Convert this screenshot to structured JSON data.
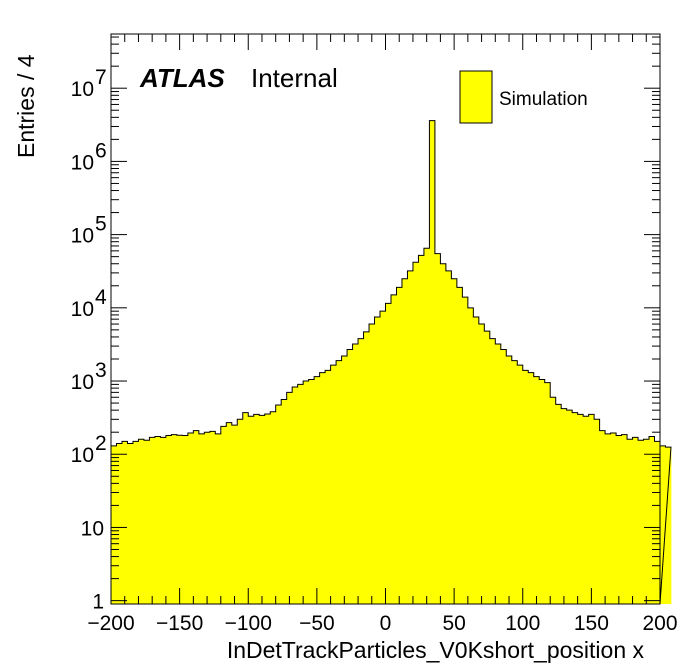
{
  "chart_data": {
    "type": "bar",
    "style": "filled-histogram",
    "fill_color": "#ffff00",
    "line_color": "#000000",
    "xlabel": "InDetTrackParticles_V0Kshort_position x",
    "ylabel": "Entries / 4",
    "xlim": [
      -200,
      200
    ],
    "ylim": [
      0.9,
      55000000
    ],
    "y_scale": "log",
    "bin_width": 4,
    "x_ticks": [
      -200,
      -150,
      -100,
      -50,
      0,
      50,
      100,
      150,
      200
    ],
    "x_tick_labels": [
      "−200",
      "−150",
      "−100",
      "−50",
      "0",
      "50",
      "100",
      "150",
      "200"
    ],
    "y_ticks": [
      {
        "value": 1,
        "base": "1",
        "exp": ""
      },
      {
        "value": 10,
        "base": "10",
        "exp": ""
      },
      {
        "value": 100,
        "base": "10",
        "exp": "2"
      },
      {
        "value": 1000,
        "base": "10",
        "exp": "3"
      },
      {
        "value": 10000,
        "base": "10",
        "exp": "4"
      },
      {
        "value": 100000,
        "base": "10",
        "exp": "5"
      },
      {
        "value": 1000000,
        "base": "10",
        "exp": "6"
      },
      {
        "value": 10000000,
        "base": "10",
        "exp": "7"
      }
    ],
    "values": [
      130,
      140,
      150,
      140,
      150,
      160,
      155,
      170,
      175,
      170,
      180,
      185,
      182,
      180,
      195,
      210,
      190,
      200,
      205,
      190,
      240,
      270,
      250,
      300,
      370,
      330,
      350,
      340,
      355,
      380,
      470,
      560,
      700,
      830,
      900,
      1000,
      1050,
      1150,
      1300,
      1400,
      1650,
      1900,
      2200,
      2700,
      3200,
      3800,
      4700,
      6000,
      7500,
      9000,
      11500,
      15000,
      19000,
      25000,
      32000,
      42000,
      52000,
      65000,
      3600000,
      55000,
      40000,
      32000,
      25000,
      19000,
      14000,
      10000,
      7500,
      6000,
      4800,
      3800,
      3200,
      2700,
      2200,
      1900,
      1650,
      1400,
      1300,
      1150,
      1050,
      950,
      600,
      480,
      420,
      400,
      370,
      350,
      330,
      350,
      300,
      210,
      190,
      195,
      180,
      185,
      160,
      170,
      155,
      160,
      175,
      150,
      130,
      125
    ],
    "legend": {
      "position": "top-right",
      "entries": [
        {
          "name": "Simulation",
          "color": "#ffff00"
        }
      ]
    },
    "annotations": {
      "atlas": "ATLAS",
      "label": "Internal"
    }
  }
}
